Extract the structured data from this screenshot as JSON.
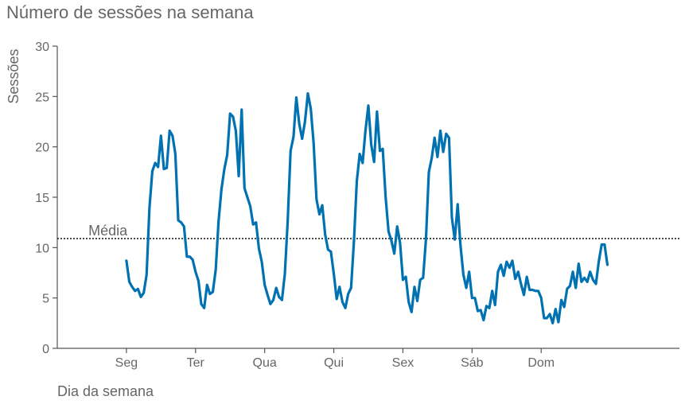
{
  "chart_data": {
    "type": "line",
    "title": "Número de sessões na semana",
    "xlabel": "Dia da semana",
    "ylabel": "Sessões",
    "ylim": [
      0,
      30
    ],
    "yticks": [
      "0",
      "5",
      "10",
      "15",
      "20",
      "25",
      "30"
    ],
    "xlim": [
      -1,
      8
    ],
    "xticks": [
      "Seg",
      "Ter",
      "Qua",
      "Qui",
      "Sex",
      "Sáb",
      "Dom"
    ],
    "grid": false,
    "mean_line": {
      "label": "Média",
      "value": 10.9
    },
    "series_color": "#0072b2",
    "series": [
      {
        "x": [
          0.0,
          0.042,
          0.083,
          0.125,
          0.167,
          0.208,
          0.25,
          0.292,
          0.333,
          0.375,
          0.417,
          0.458,
          0.5,
          0.542,
          0.583,
          0.625,
          0.667,
          0.708,
          0.75,
          0.792,
          0.833,
          0.875,
          0.917,
          0.958,
          1.0,
          1.042,
          1.083,
          1.125,
          1.167,
          1.208,
          1.25,
          1.292,
          1.333,
          1.375,
          1.417,
          1.458,
          1.5,
          1.542,
          1.583,
          1.625,
          1.667,
          1.708,
          1.75,
          1.792,
          1.833,
          1.875,
          1.917,
          1.958,
          2.0,
          2.042,
          2.083,
          2.125,
          2.167,
          2.208,
          2.25,
          2.292,
          2.333,
          2.375,
          2.417,
          2.458,
          2.5,
          2.542,
          2.583,
          2.625,
          2.667,
          2.708,
          2.75,
          2.792,
          2.833,
          2.875,
          2.917,
          2.958,
          3.0,
          3.042,
          3.083,
          3.125,
          3.167,
          3.208,
          3.25,
          3.292,
          3.333,
          3.375,
          3.417,
          3.458,
          3.5,
          3.542,
          3.583,
          3.625,
          3.667,
          3.708,
          3.75,
          3.792,
          3.833,
          3.875,
          3.917,
          3.958,
          4.0,
          4.042,
          4.083,
          4.125,
          4.167,
          4.208,
          4.25,
          4.292,
          4.333,
          4.375,
          4.417,
          4.458,
          4.5,
          4.542,
          4.583,
          4.625,
          4.667,
          4.708,
          4.75,
          4.792,
          4.833,
          4.875,
          4.917,
          4.958,
          5.0,
          5.042,
          5.083,
          5.125,
          5.167,
          5.208,
          5.25,
          5.292,
          5.333,
          5.375,
          5.417,
          5.458,
          5.5,
          5.542,
          5.583,
          5.625,
          5.667,
          5.708,
          5.75,
          5.792,
          5.833,
          5.875,
          5.917,
          5.958,
          6.0,
          6.042,
          6.083,
          6.125,
          6.167,
          6.208,
          6.25,
          6.292,
          6.333,
          6.375,
          6.417,
          6.458,
          6.5,
          6.542,
          6.583,
          6.625,
          6.667,
          6.708,
          6.75,
          6.792,
          6.833,
          6.875,
          6.917,
          6.958
        ],
        "y": [
          8.7,
          6.6,
          6.1,
          5.7,
          5.9,
          5.1,
          5.5,
          7.3,
          13.9,
          17.6,
          18.4,
          18.0,
          21.1,
          17.8,
          17.9,
          21.6,
          21.1,
          19.3,
          12.7,
          12.5,
          12.1,
          9.1,
          9.1,
          8.8,
          7.6,
          6.7,
          4.4,
          4.0,
          6.3,
          5.4,
          5.6,
          7.8,
          12.6,
          15.8,
          17.8,
          19.2,
          23.3,
          23.0,
          21.6,
          17.1,
          23.7,
          15.9,
          15.0,
          14.1,
          12.3,
          12.5,
          9.9,
          8.6,
          6.3,
          5.3,
          4.4,
          4.8,
          6.0,
          5.1,
          4.8,
          7.4,
          12.6,
          19.6,
          21.0,
          24.9,
          22.3,
          20.8,
          22.5,
          25.3,
          23.8,
          20.4,
          14.8,
          13.3,
          14.2,
          11.3,
          9.8,
          9.6,
          7.4,
          4.9,
          6.1,
          4.6,
          4.0,
          5.4,
          6.0,
          10.7,
          16.6,
          19.3,
          18.4,
          21.6,
          24.1,
          20.2,
          18.5,
          23.5,
          19.6,
          19.8,
          15.0,
          11.6,
          10.7,
          9.4,
          12.1,
          10.5,
          6.8,
          7.1,
          4.6,
          3.6,
          6.1,
          4.7,
          6.8,
          7.0,
          10.8,
          17.5,
          18.9,
          20.9,
          19.0,
          21.6,
          19.5,
          21.3,
          20.9,
          13.0,
          10.8,
          14.3,
          10.2,
          7.3,
          6.0,
          7.6,
          5.0,
          5.0,
          3.7,
          3.8,
          2.8,
          4.2,
          4.0,
          5.7,
          4.3,
          7.6,
          8.3,
          7.2,
          8.6,
          8.0,
          8.7,
          6.9,
          7.6,
          6.4,
          5.3,
          7.1,
          5.8,
          5.8,
          5.7,
          5.7,
          5.0,
          3.0,
          3.0,
          3.4,
          2.5,
          3.9,
          2.6,
          4.8,
          4.1,
          5.9,
          6.2,
          7.6,
          6.0,
          8.4,
          6.6,
          7.0,
          6.6,
          7.6,
          6.8,
          6.4,
          8.6,
          10.3,
          10.3,
          8.3
        ]
      }
    ]
  }
}
